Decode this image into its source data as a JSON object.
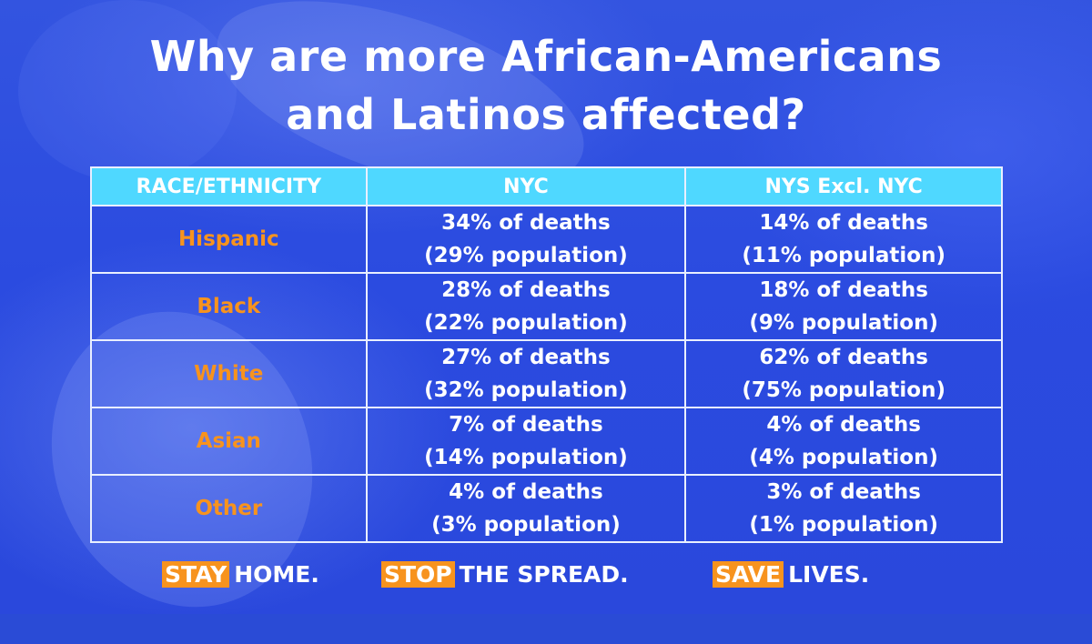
{
  "title": {
    "line1": "Why are more African-Americans",
    "line2": "and Latinos affected?"
  },
  "table": {
    "headers": [
      "RACE/ETHNICITY",
      "NYC",
      "NYS Excl. NYC"
    ],
    "rows": [
      {
        "race": "Hispanic",
        "nyc_deaths": "34% of deaths",
        "nyc_pop": "(29% population)",
        "nys_deaths": "14% of deaths",
        "nys_pop": "(11% population)"
      },
      {
        "race": "Black",
        "nyc_deaths": "28% of deaths",
        "nyc_pop": "(22% population)",
        "nys_deaths": "18% of deaths",
        "nys_pop": "(9% population)"
      },
      {
        "race": "White",
        "nyc_deaths": "27% of deaths",
        "nyc_pop": "(32% population)",
        "nys_deaths": "62% of deaths",
        "nys_pop": "(75% population)"
      },
      {
        "race": "Asian",
        "nyc_deaths": "7% of deaths",
        "nyc_pop": "(14% population)",
        "nys_deaths": "4% of deaths",
        "nys_pop": "(4% population)"
      },
      {
        "race": "Other",
        "nyc_deaths": "4% of deaths",
        "nyc_pop": "(3% population)",
        "nys_deaths": "3% of deaths",
        "nys_pop": "(1% population)"
      }
    ]
  },
  "footer": {
    "stay_tag": "STAY",
    "stay_text": "HOME.",
    "stop_tag": "STOP",
    "stop_text": "THE SPREAD.",
    "save_tag": "SAVE",
    "save_text": "LIVES."
  },
  "colors": {
    "background": "#2a4bd6",
    "header_bg": "#4fd8ff",
    "race_text": "#f7931e",
    "slogan_tag_bg": "#f7931e",
    "text": "#ffffff"
  }
}
